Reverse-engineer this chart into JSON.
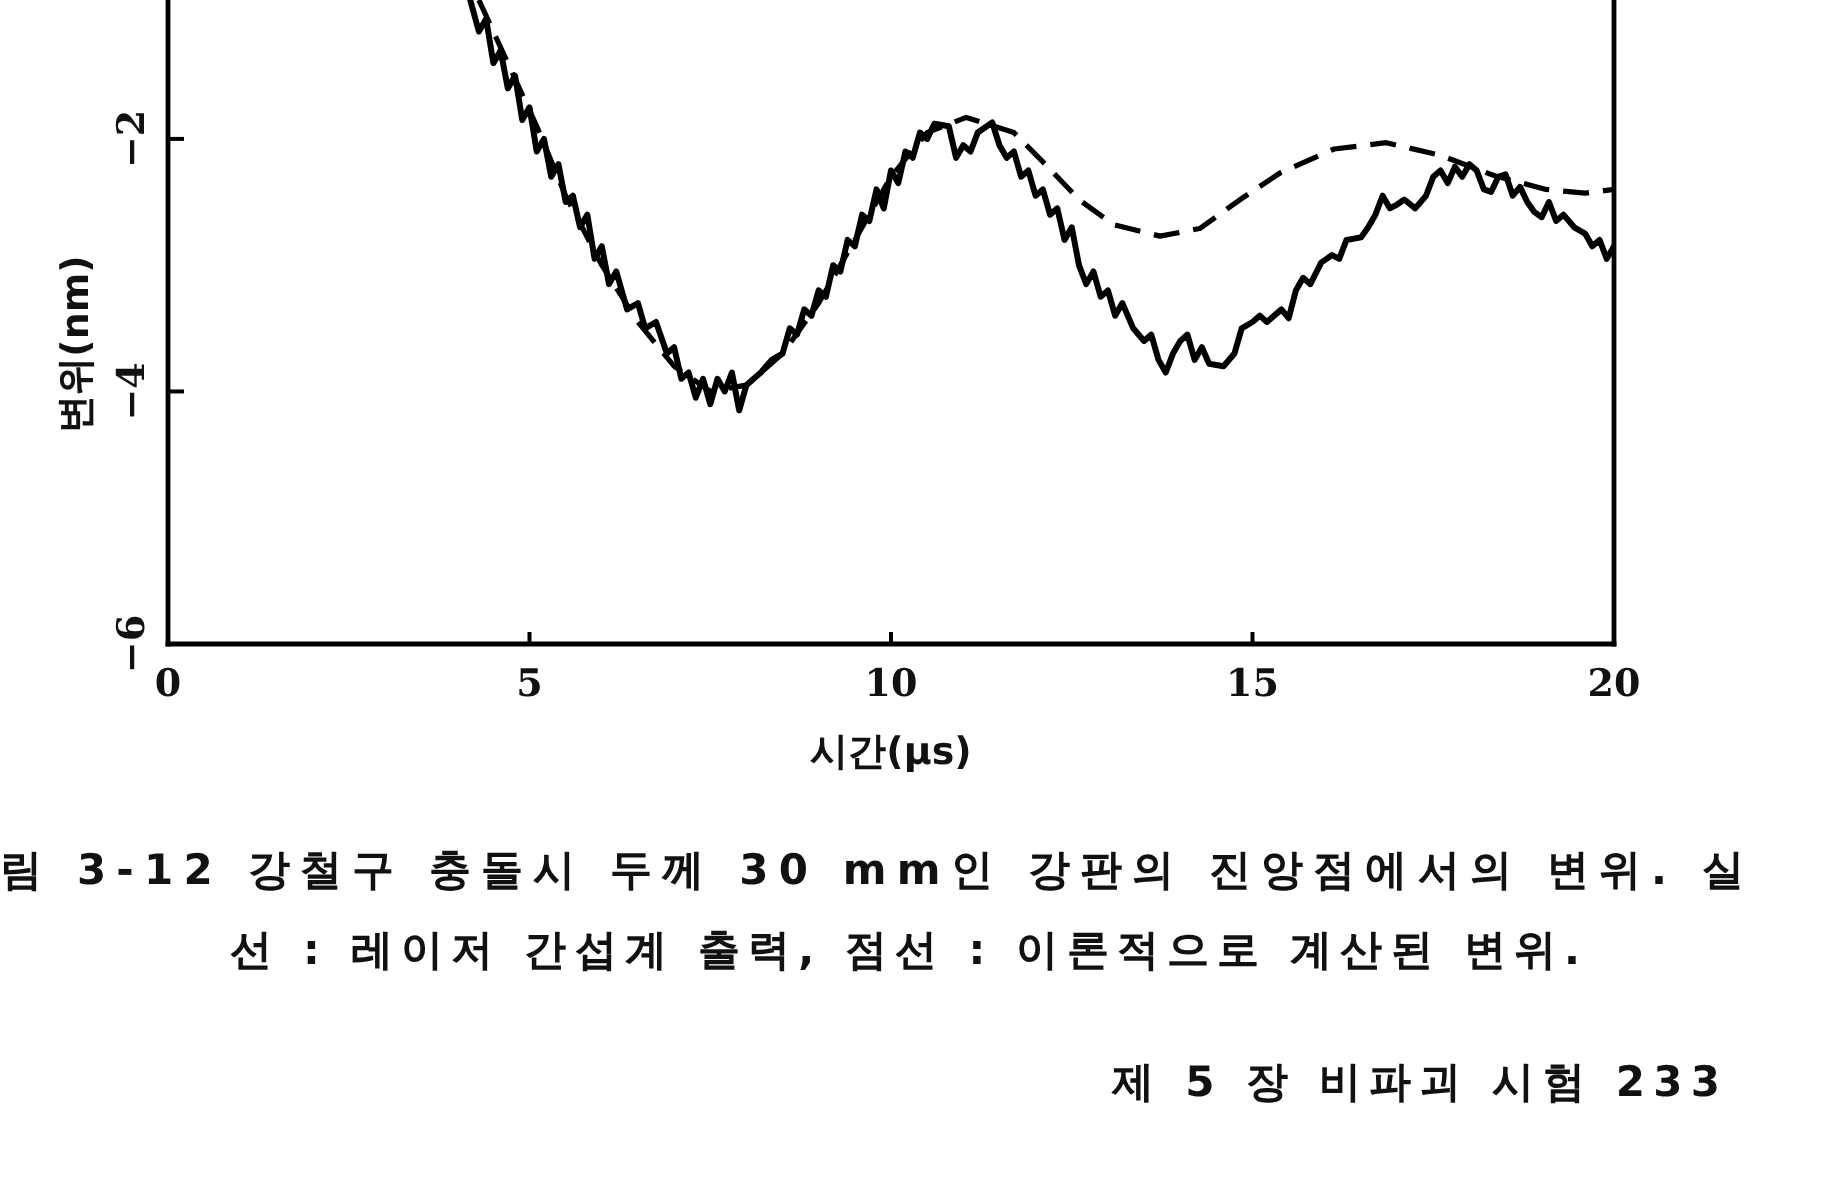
{
  "chart_data": {
    "type": "line",
    "xlabel": "시간(μs)",
    "ylabel": "변위(nm)",
    "xlim": [
      0,
      20
    ],
    "ylim": [
      -6,
      -0.9
    ],
    "xticks": [
      0,
      5,
      10,
      15,
      20
    ],
    "yticks": [
      -2,
      -4,
      -6
    ],
    "series": [
      {
        "color": "#000000",
        "line_style": "solid",
        "x": [
          4.18,
          4.3,
          4.4,
          4.5,
          4.6,
          4.7,
          4.8,
          4.9,
          5.0,
          5.1,
          5.2,
          5.3,
          5.4,
          5.5,
          5.6,
          5.7,
          5.8,
          5.9,
          6.0,
          6.1,
          6.2,
          6.35,
          6.5,
          6.6,
          6.75,
          6.9,
          7.0,
          7.1,
          7.2,
          7.3,
          7.4,
          7.5,
          7.6,
          7.7,
          7.8,
          7.9,
          8.0,
          8.1,
          8.2,
          8.35,
          8.5,
          8.6,
          8.7,
          8.8,
          8.9,
          9.0,
          9.1,
          9.2,
          9.3,
          9.4,
          9.5,
          9.6,
          9.7,
          9.8,
          9.9,
          10.0,
          10.1,
          10.2,
          10.3,
          10.4,
          10.5,
          10.6,
          10.8,
          10.9,
          11.0,
          11.1,
          11.2,
          11.4,
          11.5,
          11.6,
          11.7,
          11.8,
          11.9,
          12.0,
          12.1,
          12.2,
          12.3,
          12.4,
          12.5,
          12.6,
          12.7,
          12.8,
          12.9,
          13.0,
          13.1,
          13.2,
          13.35,
          13.5,
          13.6,
          13.7,
          13.8,
          13.9,
          14.0,
          14.1,
          14.2,
          14.3,
          14.4,
          14.6,
          14.75,
          14.85,
          15.0,
          15.1,
          15.2,
          15.4,
          15.5,
          15.6,
          15.7,
          15.8,
          15.95,
          16.1,
          16.2,
          16.3,
          16.5,
          16.6,
          16.7,
          16.8,
          16.9,
          17.0,
          17.1,
          17.25,
          17.4,
          17.5,
          17.6,
          17.7,
          17.8,
          17.9,
          18.0,
          18.1,
          18.2,
          18.3,
          18.4,
          18.5,
          18.6,
          18.7,
          18.8,
          18.9,
          19.0,
          19.1,
          19.2,
          19.3,
          19.45,
          19.6,
          19.7,
          19.8,
          19.9,
          20.0
        ],
        "values": [
          -0.9,
          -1.15,
          -1.05,
          -1.4,
          -1.3,
          -1.6,
          -1.5,
          -1.85,
          -1.75,
          -2.1,
          -2.0,
          -2.3,
          -2.2,
          -2.5,
          -2.45,
          -2.7,
          -2.6,
          -2.95,
          -2.85,
          -3.15,
          -3.05,
          -3.35,
          -3.3,
          -3.5,
          -3.45,
          -3.7,
          -3.65,
          -3.9,
          -3.85,
          -4.05,
          -3.9,
          -4.1,
          -3.9,
          -4.0,
          -3.85,
          -4.15,
          -3.95,
          -3.9,
          -3.85,
          -3.75,
          -3.7,
          -3.5,
          -3.55,
          -3.35,
          -3.4,
          -3.2,
          -3.25,
          -3.0,
          -3.05,
          -2.8,
          -2.85,
          -2.6,
          -2.65,
          -2.4,
          -2.55,
          -2.25,
          -2.35,
          -2.1,
          -2.15,
          -1.95,
          -2.0,
          -1.88,
          -1.9,
          -2.15,
          -2.05,
          -2.1,
          -1.95,
          -1.87,
          -2.05,
          -2.15,
          -2.1,
          -2.3,
          -2.25,
          -2.45,
          -2.4,
          -2.6,
          -2.55,
          -2.8,
          -2.7,
          -3.0,
          -3.15,
          -3.05,
          -3.25,
          -3.2,
          -3.4,
          -3.3,
          -3.5,
          -3.6,
          -3.55,
          -3.75,
          -3.85,
          -3.7,
          -3.6,
          -3.55,
          -3.75,
          -3.65,
          -3.78,
          -3.8,
          -3.7,
          -3.5,
          -3.45,
          -3.4,
          -3.45,
          -3.35,
          -3.42,
          -3.2,
          -3.1,
          -3.15,
          -2.98,
          -2.92,
          -2.95,
          -2.8,
          -2.78,
          -2.7,
          -2.6,
          -2.45,
          -2.55,
          -2.52,
          -2.48,
          -2.55,
          -2.45,
          -2.3,
          -2.25,
          -2.35,
          -2.22,
          -2.3,
          -2.2,
          -2.25,
          -2.4,
          -2.42,
          -2.3,
          -2.28,
          -2.45,
          -2.38,
          -2.5,
          -2.58,
          -2.62,
          -2.5,
          -2.65,
          -2.6,
          -2.7,
          -2.75,
          -2.85,
          -2.8,
          -2.95,
          -2.85
        ]
      },
      {
        "color": "#000000",
        "line_style": "dashed",
        "x": [
          4.3,
          4.7,
          5.1,
          5.5,
          6.0,
          6.5,
          7.0,
          7.5,
          8.0,
          8.5,
          9.0,
          9.5,
          10.0,
          10.5,
          11.04,
          11.7,
          12.15,
          12.6,
          13.08,
          13.72,
          14.27,
          14.83,
          15.38,
          16.13,
          16.85,
          17.6,
          18.34,
          19.06,
          19.6,
          20.0
        ],
        "values": [
          -0.9,
          -1.4,
          -1.9,
          -2.45,
          -3.0,
          -3.45,
          -3.8,
          -4.0,
          -3.95,
          -3.7,
          -3.3,
          -2.8,
          -2.3,
          -1.95,
          -1.83,
          -1.95,
          -2.21,
          -2.48,
          -2.68,
          -2.77,
          -2.71,
          -2.48,
          -2.27,
          -2.08,
          -2.03,
          -2.13,
          -2.29,
          -2.4,
          -2.43,
          -2.4
        ]
      }
    ],
    "annotations": [
      "림 3-12  강철구 충돌시 두께 30 mm인 강판의 진앙점에서의 변위. 실",
      "선 : 레이저 간섭계 출력, 점선 : 이론적으로 계산된 변위.",
      "제 5 장   비파괴 시험   233"
    ]
  }
}
